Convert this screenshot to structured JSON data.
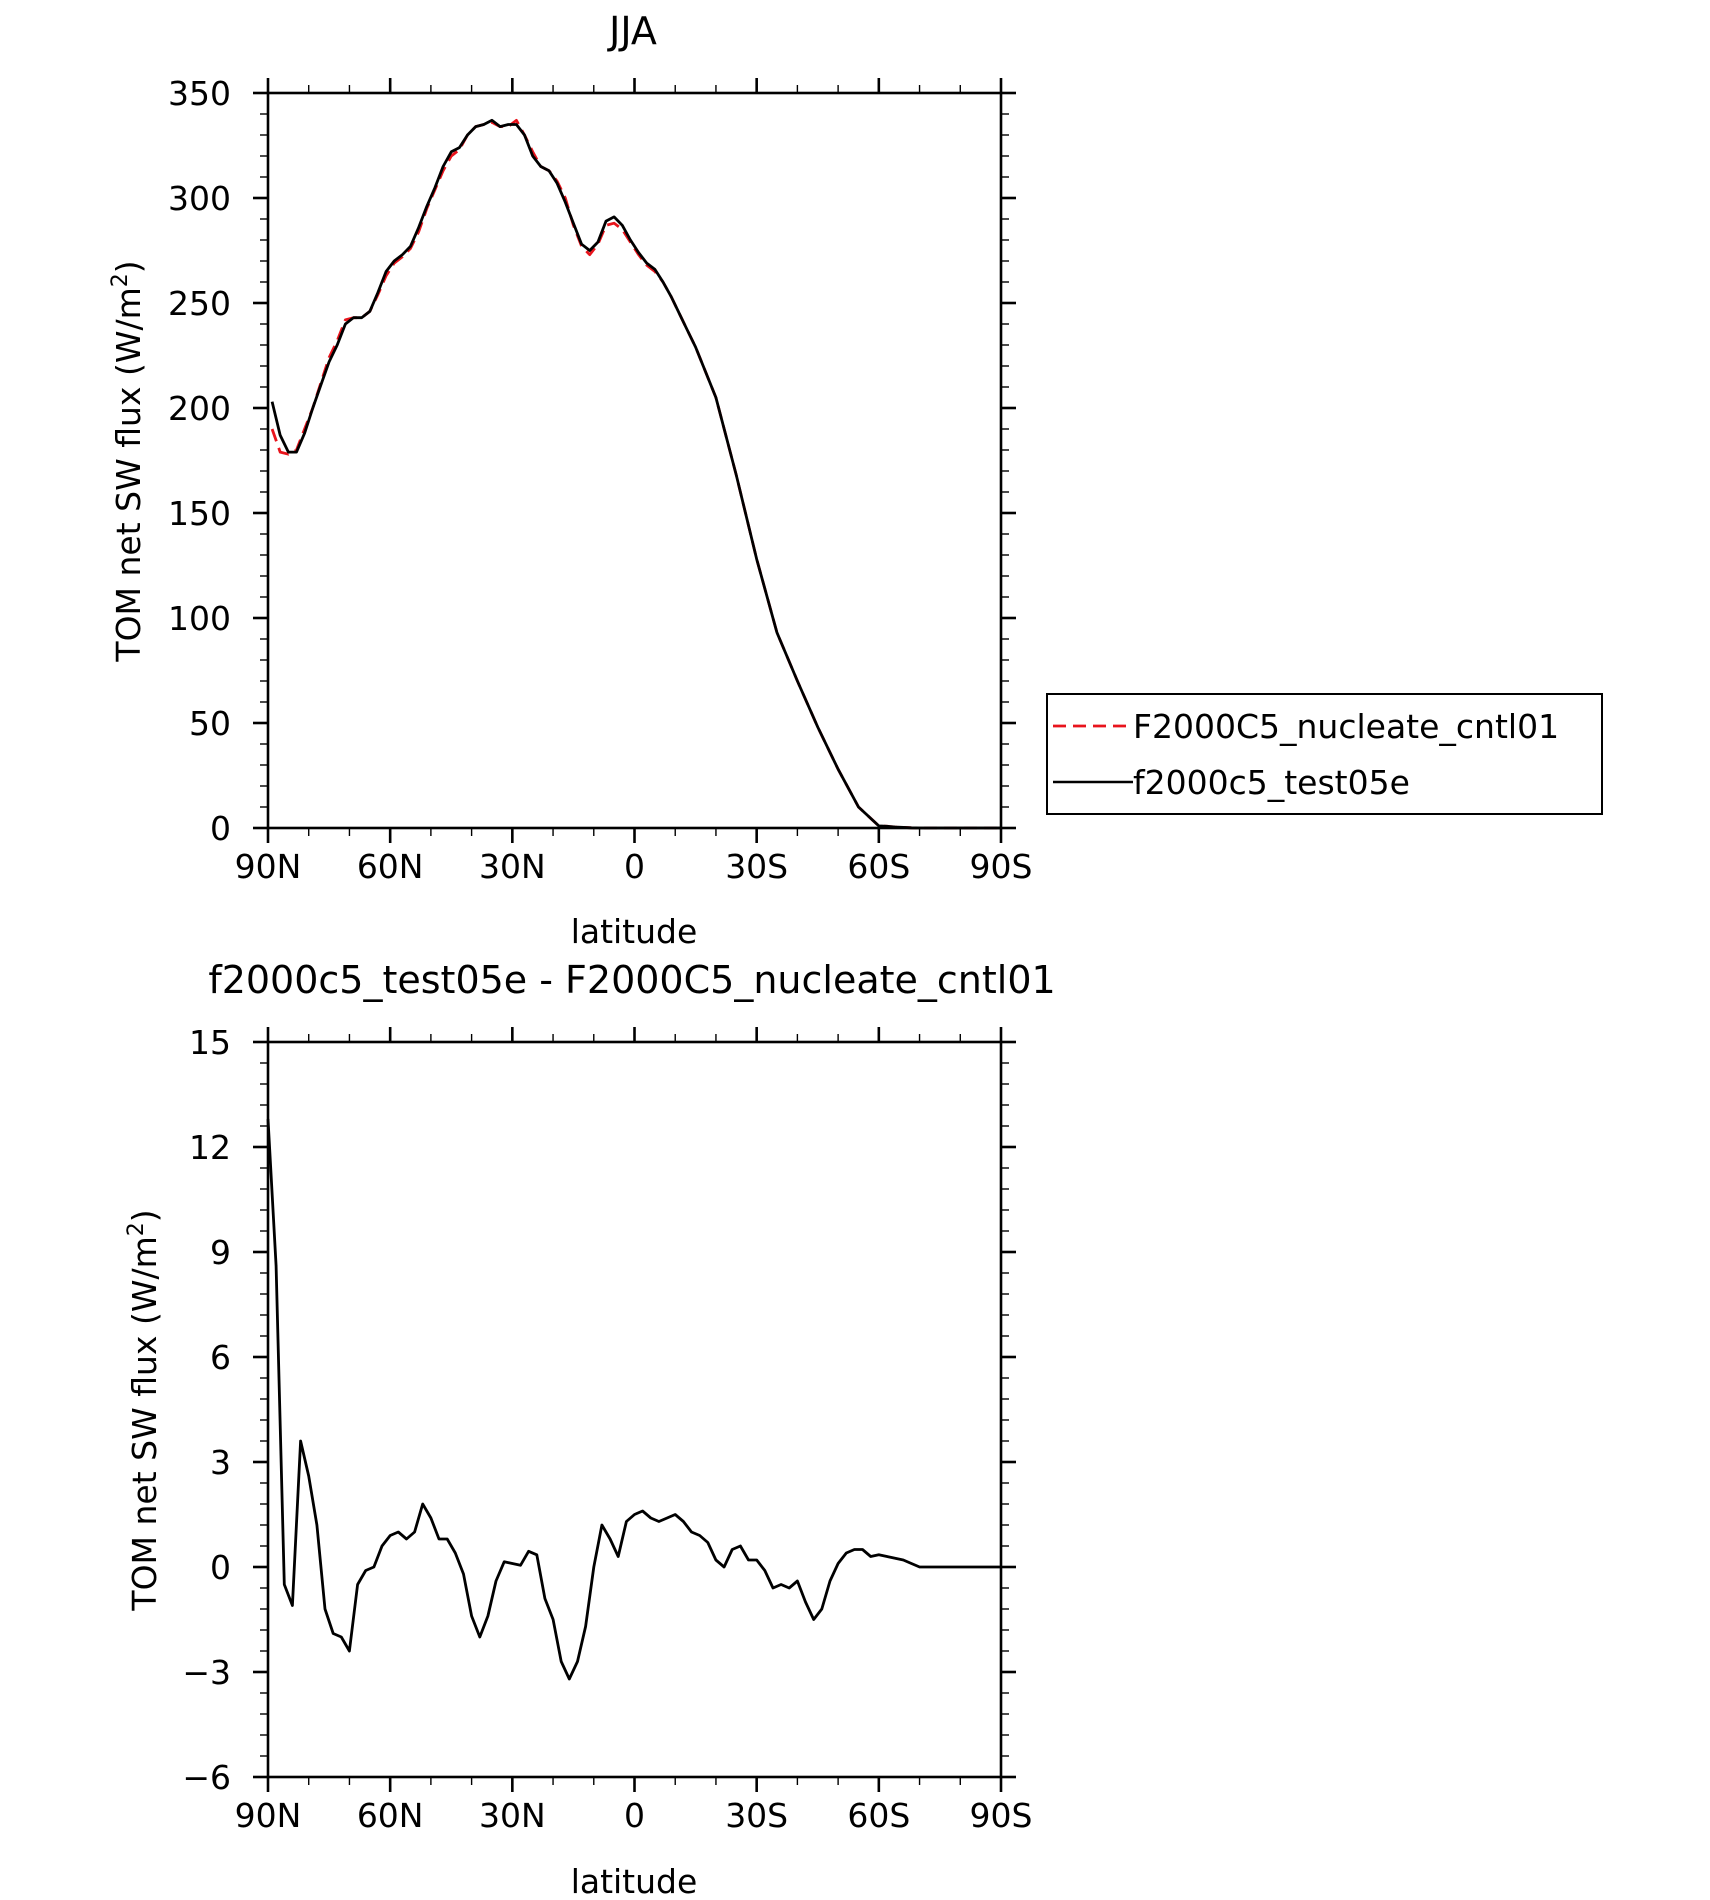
{
  "chart_data": [
    {
      "type": "line",
      "title": "JJA",
      "xlabel": "latitude",
      "ylabel": "TOM net SW flux (W/m",
      "ylabel_sup": "2",
      "ylabel_tail": ")",
      "xlim": [
        90,
        -90
      ],
      "ylim": [
        0,
        350
      ],
      "x_ticks": [
        90,
        60,
        30,
        0,
        -30,
        -60,
        -90
      ],
      "x_tick_labels": [
        "90N",
        "60N",
        "30N",
        "0",
        "30S",
        "60S",
        "90S"
      ],
      "y_ticks": [
        0,
        50,
        100,
        150,
        200,
        250,
        300,
        350
      ],
      "y_tick_labels": [
        "0",
        "50",
        "100",
        "150",
        "200",
        "250",
        "300",
        "350"
      ],
      "legend": "right",
      "series": [
        {
          "name": "F2000C5_nucleate_cntl01",
          "color": "#e8141c",
          "dash": "dashed",
          "x": [
            89,
            87,
            85,
            83,
            81,
            79,
            77,
            75,
            73,
            71,
            69,
            67,
            65,
            63,
            61,
            59,
            57,
            55,
            53,
            51,
            49,
            47,
            45,
            43,
            41,
            39,
            37,
            35,
            33,
            31,
            29,
            27,
            25,
            23,
            21,
            19,
            17,
            15,
            13,
            11,
            9,
            7,
            5,
            3,
            1,
            -1,
            -3,
            -5,
            -7,
            -9,
            -11,
            -13,
            -15,
            -20,
            -25,
            -30,
            -35,
            -40,
            -45,
            -50,
            -55,
            -60,
            -62,
            -64,
            -66,
            -68,
            -70,
            -72,
            -75,
            -80,
            -85,
            -90
          ],
          "y": [
            190,
            179,
            178,
            180,
            190,
            200,
            212,
            224,
            232,
            242,
            243,
            243,
            246,
            254,
            263,
            269,
            272,
            276,
            284,
            295,
            304,
            313,
            320,
            323,
            330,
            334,
            335,
            336,
            334,
            334,
            337,
            330,
            322,
            315,
            313,
            308,
            300,
            287,
            277,
            273,
            278,
            287,
            288,
            285,
            279,
            273,
            268,
            265,
            260,
            253,
            245,
            237,
            229,
            205,
            168,
            128,
            93,
            70,
            48,
            28,
            10,
            1,
            0.8,
            0.5,
            0.3,
            0.1,
            0,
            0,
            0,
            0,
            0,
            0
          ]
        },
        {
          "name": "f2000c5_test05e",
          "color": "#000000",
          "dash": "solid",
          "x": [
            89,
            87,
            85,
            83,
            81,
            79,
            77,
            75,
            73,
            71,
            69,
            67,
            65,
            63,
            61,
            59,
            57,
            55,
            53,
            51,
            49,
            47,
            45,
            43,
            41,
            39,
            37,
            35,
            33,
            31,
            29,
            27,
            25,
            23,
            21,
            19,
            17,
            15,
            13,
            11,
            9,
            7,
            5,
            3,
            1,
            -1,
            -3,
            -5,
            -7,
            -9,
            -11,
            -13,
            -15,
            -20,
            -25,
            -30,
            -35,
            -40,
            -45,
            -50,
            -55,
            -60,
            -62,
            -64,
            -66,
            -68,
            -70,
            -72,
            -75,
            -80,
            -85,
            -90
          ],
          "y": [
            203,
            187,
            179,
            179,
            188,
            200,
            211,
            222,
            230,
            240,
            243,
            243,
            246,
            255,
            265,
            270,
            273,
            277,
            286,
            296,
            305,
            315,
            322,
            324,
            330,
            334,
            335,
            337,
            334,
            335,
            335,
            330,
            320,
            315,
            313,
            307,
            298,
            288,
            278,
            275,
            279,
            289,
            291,
            287,
            280,
            274,
            269,
            266,
            260,
            253,
            245,
            237,
            229,
            205,
            168,
            128,
            93,
            70,
            48,
            28,
            10,
            1,
            0.8,
            0.5,
            0.3,
            0.1,
            0,
            0,
            0,
            0,
            0,
            0
          ]
        }
      ]
    },
    {
      "type": "line",
      "title": "f2000c5_test05e - F2000C5_nucleate_cntl01",
      "xlabel": "latitude",
      "ylabel": "TOM net SW flux (W/m",
      "ylabel_sup": "2",
      "ylabel_tail": ")",
      "xlim": [
        90,
        -90
      ],
      "ylim": [
        -6,
        15
      ],
      "x_ticks": [
        90,
        60,
        30,
        0,
        -30,
        -60,
        -90
      ],
      "x_tick_labels": [
        "90N",
        "60N",
        "30N",
        "0",
        "30S",
        "60S",
        "90S"
      ],
      "y_ticks": [
        -6,
        -3,
        0,
        3,
        6,
        9,
        12,
        15
      ],
      "y_tick_labels": [
        "−6",
        "−3",
        "0",
        "3",
        "6",
        "9",
        "12",
        "15"
      ],
      "series": [
        {
          "color": "#000000",
          "dash": "solid",
          "x": [
            90,
            88,
            86,
            84,
            82,
            80,
            78,
            76,
            74,
            72,
            70,
            68,
            66,
            64,
            62,
            60,
            58,
            56,
            54,
            52,
            50,
            48,
            46,
            44,
            42,
            40,
            38,
            36,
            34,
            32,
            30,
            28,
            26,
            24,
            22,
            20,
            18,
            16,
            14,
            12,
            10,
            8,
            6,
            4,
            2,
            0,
            -2,
            -4,
            -6,
            -8,
            -10,
            -12,
            -14,
            -16,
            -18,
            -20,
            -22,
            -24,
            -26,
            -28,
            -30,
            -32,
            -34,
            -36,
            -38,
            -40,
            -42,
            -44,
            -46,
            -48,
            -50,
            -52,
            -54,
            -56,
            -58,
            -60,
            -62,
            -64,
            -66,
            -68,
            -70,
            -75,
            -80,
            -85,
            -90
          ],
          "y": [
            12.8,
            8.6,
            -0.5,
            -1.1,
            3.6,
            2.6,
            1.2,
            -1.2,
            -1.9,
            -2.0,
            -2.4,
            -0.5,
            -0.1,
            0.0,
            0.6,
            0.9,
            1.0,
            0.8,
            1.0,
            1.8,
            1.4,
            0.8,
            0.8,
            0.4,
            -0.2,
            -1.4,
            -2.0,
            -1.4,
            -0.4,
            0.15,
            0.1,
            0.05,
            0.45,
            0.35,
            -0.9,
            -1.5,
            -2.7,
            -3.2,
            -2.7,
            -1.7,
            0.0,
            1.2,
            0.8,
            0.3,
            1.3,
            1.5,
            1.6,
            1.4,
            1.3,
            1.4,
            1.5,
            1.3,
            1.0,
            0.9,
            0.7,
            0.2,
            0.0,
            0.5,
            0.6,
            0.2,
            0.2,
            -0.1,
            -0.6,
            -0.5,
            -0.6,
            -0.4,
            -1.0,
            -1.5,
            -1.2,
            -0.4,
            0.1,
            0.4,
            0.5,
            0.5,
            0.3,
            0.35,
            0.3,
            0.25,
            0.2,
            0.1,
            0.0,
            0.0,
            0.0,
            0.0,
            0.0
          ]
        }
      ]
    }
  ]
}
